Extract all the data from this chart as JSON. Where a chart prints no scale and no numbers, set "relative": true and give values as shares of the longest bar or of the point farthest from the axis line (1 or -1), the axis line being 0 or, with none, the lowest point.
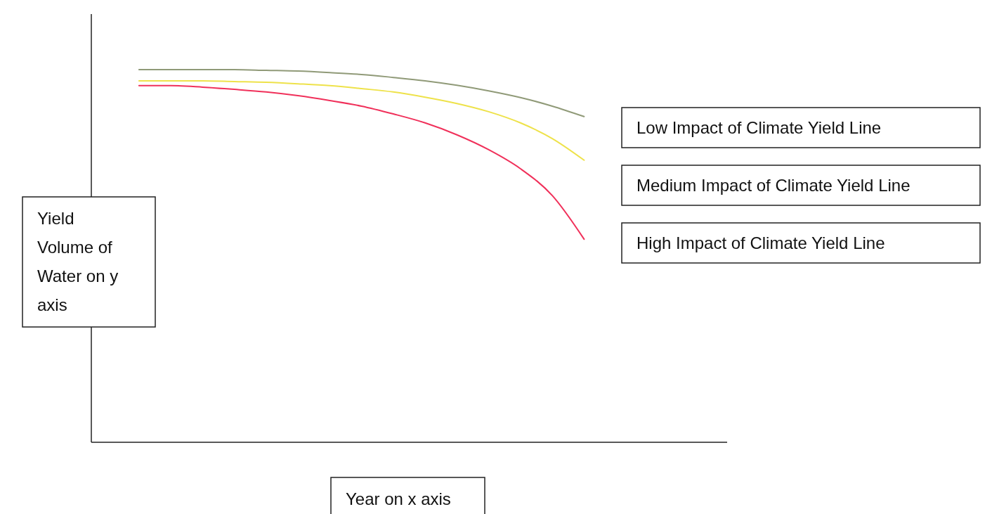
{
  "chart_data": {
    "type": "line",
    "relative": true,
    "xlabel": "Year on x axis",
    "ylabel": "Yield Volume of Water on y axis",
    "categories": [
      null,
      null,
      null,
      null,
      null,
      null,
      null,
      null,
      null,
      null,
      null,
      null,
      null,
      null,
      null,
      null,
      null,
      null,
      null,
      null
    ],
    "series": [
      {
        "name": "Low Impact of Climate Yield Line",
        "color": "#909a78",
        "values": [
          null,
          1,
          1,
          1,
          1,
          0.998,
          0.996,
          0.992,
          0.987,
          0.979,
          0.97,
          0.958,
          0.943,
          0.925,
          0.902,
          0.874,
          null,
          null,
          null,
          null
        ]
      },
      {
        "name": "Medium Impact of Climate Yield Line",
        "color": "#eee24a",
        "values": [
          null,
          0.97,
          0.97,
          0.97,
          0.968,
          0.966,
          0.962,
          0.957,
          0.949,
          0.94,
          0.926,
          0.909,
          0.887,
          0.857,
          0.815,
          0.757,
          null,
          null,
          null,
          null
        ]
      },
      {
        "name": "High Impact of Climate Yield Line",
        "color": "#f0305a",
        "values": [
          null,
          0.957,
          0.957,
          0.953,
          0.947,
          0.94,
          0.93,
          0.917,
          0.902,
          0.881,
          0.857,
          0.825,
          0.785,
          0.734,
          0.662,
          0.545,
          null,
          null,
          null,
          null
        ]
      }
    ]
  }
}
